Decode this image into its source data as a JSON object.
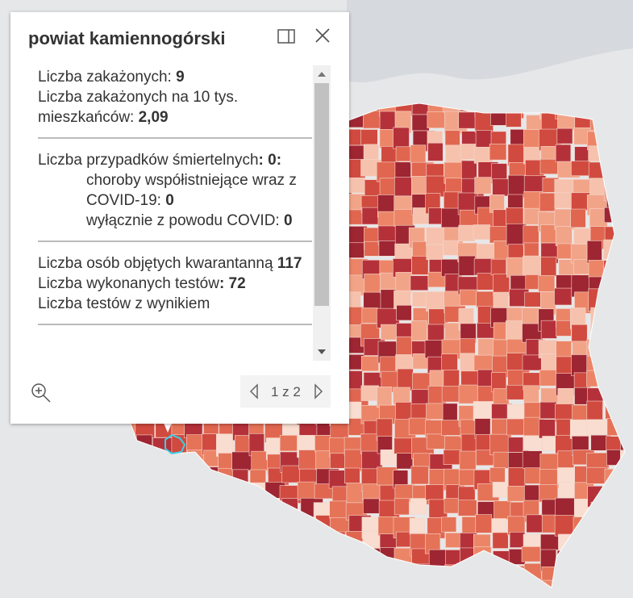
{
  "popup": {
    "title": "powiat kamiennogórski",
    "sections": [
      {
        "rows": [
          {
            "label": "Liczba zakażonych: ",
            "value": "9"
          },
          {
            "label": "Liczba zakażonych na 10 tys. mieszkańców: ",
            "value": "2,09"
          }
        ]
      },
      {
        "rows": [
          {
            "label": "Liczba przypadków śmiertelnych",
            "value": ": 0:"
          }
        ],
        "subrows": [
          {
            "label": "choroby współistniejące wraz z COVID-19: ",
            "value": "0"
          },
          {
            "label": "wyłącznie z powodu COVID: ",
            "value": "0"
          }
        ]
      },
      {
        "rows": [
          {
            "label": "Liczba osób objętych kwarantanną ",
            "value": "117"
          },
          {
            "label": "Liczba wykonanych testów",
            "value": ": 72"
          },
          {
            "label": "Liczba testów z wynikiem",
            "value": ""
          }
        ]
      }
    ],
    "pager": "1 z 2"
  }
}
